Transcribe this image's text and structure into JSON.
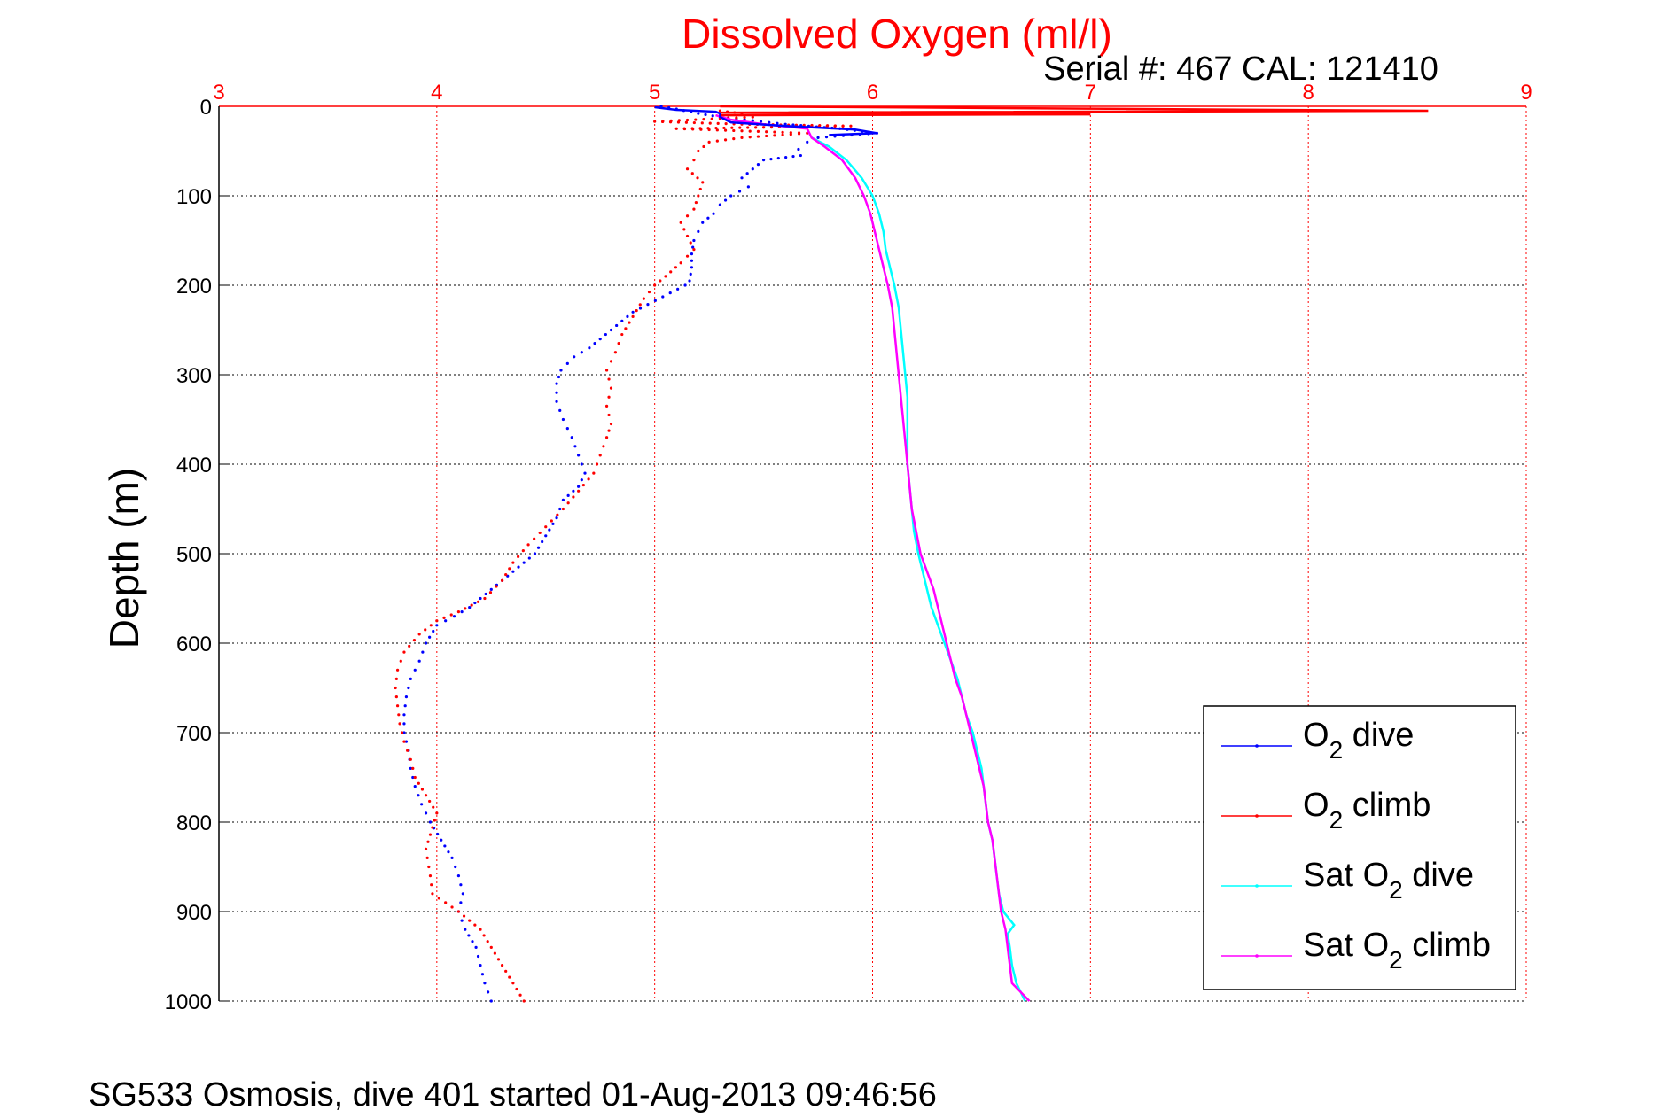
{
  "chart_data": {
    "type": "scatter",
    "title": "Dissolved Oxygen (ml/l)",
    "subtitle": "Serial #: 467  CAL: 121410",
    "footer": "SG533 Osmosis, dive 401 started 01-Aug-2013 09:46:56",
    "ylabel": "Depth (m)",
    "xlim": [
      3,
      9
    ],
    "ylim": [
      0,
      1000
    ],
    "y_reversed": true,
    "x_axis_position": "top",
    "xticks": [
      "3",
      "4",
      "5",
      "6",
      "7",
      "8",
      "9"
    ],
    "yticks": [
      "0",
      "100",
      "200",
      "300",
      "400",
      "500",
      "600",
      "700",
      "800",
      "900",
      "1000"
    ],
    "grid": true,
    "legend_placement": "bottom-right",
    "colors": {
      "title": "#ff0000",
      "x_axis": "#ff0000",
      "x_grid": "#ff0000",
      "y_grid": "#000000"
    },
    "series": [
      {
        "name": "O2 dive",
        "legend_main": "O",
        "legend_sub": "2",
        "legend_rest": " dive",
        "color": "#0000ff",
        "style": "dots",
        "points": [
          [
            5.03,
            0
          ],
          [
            5.1,
            3
          ],
          [
            5.2,
            8
          ],
          [
            5.3,
            12
          ],
          [
            5.45,
            16
          ],
          [
            5.6,
            20
          ],
          [
            5.85,
            25
          ],
          [
            6.02,
            30
          ],
          [
            5.75,
            35
          ],
          [
            5.7,
            40
          ],
          [
            5.66,
            48
          ],
          [
            5.67,
            55
          ],
          [
            5.5,
            60
          ],
          [
            5.45,
            70
          ],
          [
            5.4,
            80
          ],
          [
            5.43,
            90
          ],
          [
            5.35,
            100
          ],
          [
            5.3,
            110
          ],
          [
            5.27,
            120
          ],
          [
            5.22,
            130
          ],
          [
            5.2,
            140
          ],
          [
            5.18,
            150
          ],
          [
            5.17,
            165
          ],
          [
            5.17,
            180
          ],
          [
            5.16,
            195
          ],
          [
            5.14,
            200
          ],
          [
            4.9,
            230
          ],
          [
            4.8,
            250
          ],
          [
            4.7,
            270
          ],
          [
            4.63,
            280
          ],
          [
            4.57,
            295
          ],
          [
            4.55,
            310
          ],
          [
            4.55,
            330
          ],
          [
            4.58,
            350
          ],
          [
            4.62,
            370
          ],
          [
            4.65,
            390
          ],
          [
            4.68,
            410
          ],
          [
            4.65,
            425
          ],
          [
            4.58,
            440
          ],
          [
            4.55,
            460
          ],
          [
            4.5,
            480
          ],
          [
            4.45,
            500
          ],
          [
            4.35,
            520
          ],
          [
            4.25,
            540
          ],
          [
            4.15,
            560
          ],
          [
            4.08,
            570
          ],
          [
            4.0,
            580
          ],
          [
            3.95,
            600
          ],
          [
            3.92,
            620
          ],
          [
            3.88,
            640
          ],
          [
            3.86,
            660
          ],
          [
            3.85,
            680
          ],
          [
            3.85,
            700
          ],
          [
            3.87,
            720
          ],
          [
            3.88,
            740
          ],
          [
            3.9,
            760
          ],
          [
            3.93,
            780
          ],
          [
            3.97,
            800
          ],
          [
            4.02,
            820
          ],
          [
            4.07,
            840
          ],
          [
            4.1,
            860
          ],
          [
            4.12,
            880
          ],
          [
            4.1,
            900
          ],
          [
            4.13,
            920
          ],
          [
            4.18,
            940
          ],
          [
            4.2,
            960
          ],
          [
            4.22,
            980
          ],
          [
            4.25,
            1000
          ]
        ]
      },
      {
        "name": "O2 climb",
        "legend_main": "O",
        "legend_sub": "2",
        "legend_rest": " climb",
        "color": "#ff0000",
        "style": "dots",
        "points": [
          [
            5.3,
            5
          ],
          [
            5.4,
            8
          ],
          [
            5.45,
            12
          ],
          [
            5.0,
            17
          ],
          [
            5.4,
            20
          ],
          [
            5.9,
            22
          ],
          [
            5.1,
            25
          ],
          [
            5.7,
            30
          ],
          [
            5.4,
            35
          ],
          [
            5.25,
            40
          ],
          [
            5.2,
            50
          ],
          [
            5.18,
            60
          ],
          [
            5.15,
            70
          ],
          [
            5.22,
            85
          ],
          [
            5.2,
            100
          ],
          [
            5.18,
            115
          ],
          [
            5.12,
            130
          ],
          [
            5.15,
            145
          ],
          [
            5.18,
            160
          ],
          [
            5.12,
            175
          ],
          [
            5.05,
            190
          ],
          [
            5.0,
            200
          ],
          [
            4.95,
            215
          ],
          [
            4.9,
            235
          ],
          [
            4.85,
            255
          ],
          [
            4.82,
            275
          ],
          [
            4.78,
            295
          ],
          [
            4.8,
            315
          ],
          [
            4.78,
            335
          ],
          [
            4.8,
            355
          ],
          [
            4.78,
            370
          ],
          [
            4.75,
            390
          ],
          [
            4.72,
            410
          ],
          [
            4.65,
            430
          ],
          [
            4.58,
            450
          ],
          [
            4.5,
            470
          ],
          [
            4.42,
            490
          ],
          [
            4.35,
            510
          ],
          [
            4.3,
            530
          ],
          [
            4.22,
            550
          ],
          [
            4.1,
            565
          ],
          [
            4.0,
            575
          ],
          [
            3.92,
            590
          ],
          [
            3.85,
            610
          ],
          [
            3.82,
            630
          ],
          [
            3.81,
            650
          ],
          [
            3.82,
            670
          ],
          [
            3.83,
            690
          ],
          [
            3.85,
            710
          ],
          [
            3.88,
            730
          ],
          [
            3.9,
            750
          ],
          [
            3.95,
            770
          ],
          [
            4.0,
            790
          ],
          [
            3.95,
            830
          ],
          [
            3.97,
            860
          ],
          [
            3.98,
            880
          ],
          [
            4.1,
            900
          ],
          [
            4.2,
            920
          ],
          [
            4.25,
            940
          ],
          [
            4.3,
            960
          ],
          [
            4.35,
            980
          ],
          [
            4.4,
            1000
          ]
        ]
      },
      {
        "name": "Sat O2 dive",
        "legend_main": "Sat O",
        "legend_sub": "2",
        "legend_rest": " dive",
        "color": "#00ffff",
        "style": "line",
        "points": [
          [
            5.72,
            35
          ],
          [
            5.8,
            45
          ],
          [
            5.88,
            60
          ],
          [
            5.95,
            80
          ],
          [
            6.0,
            100
          ],
          [
            6.03,
            120
          ],
          [
            6.05,
            140
          ],
          [
            6.06,
            160
          ],
          [
            6.08,
            180
          ],
          [
            6.1,
            200
          ],
          [
            6.12,
            225
          ],
          [
            6.13,
            250
          ],
          [
            6.14,
            275
          ],
          [
            6.15,
            300
          ],
          [
            6.16,
            325
          ],
          [
            6.16,
            350
          ],
          [
            6.16,
            375
          ],
          [
            6.16,
            400
          ],
          [
            6.17,
            425
          ],
          [
            6.18,
            450
          ],
          [
            6.19,
            475
          ],
          [
            6.21,
            500
          ],
          [
            6.23,
            520
          ],
          [
            6.25,
            540
          ],
          [
            6.27,
            560
          ],
          [
            6.3,
            580
          ],
          [
            6.33,
            600
          ],
          [
            6.36,
            620
          ],
          [
            6.39,
            640
          ],
          [
            6.41,
            660
          ],
          [
            6.43,
            680
          ],
          [
            6.46,
            700
          ],
          [
            6.48,
            720
          ],
          [
            6.5,
            740
          ],
          [
            6.51,
            760
          ],
          [
            6.52,
            780
          ],
          [
            6.53,
            800
          ],
          [
            6.55,
            820
          ],
          [
            6.56,
            840
          ],
          [
            6.57,
            860
          ],
          [
            6.58,
            880
          ],
          [
            6.6,
            900
          ],
          [
            6.65,
            915
          ],
          [
            6.62,
            925
          ],
          [
            6.63,
            940
          ],
          [
            6.64,
            960
          ],
          [
            6.66,
            980
          ],
          [
            6.7,
            1000
          ]
        ]
      },
      {
        "name": "Sat O2 climb",
        "legend_main": "Sat O",
        "legend_sub": "2",
        "legend_rest": " climb",
        "color": "#ff00ff",
        "style": "line",
        "points": [
          [
            5.28,
            10
          ],
          [
            5.35,
            15
          ],
          [
            5.5,
            20
          ],
          [
            5.7,
            25
          ],
          [
            5.72,
            35
          ],
          [
            5.78,
            45
          ],
          [
            5.86,
            60
          ],
          [
            5.92,
            80
          ],
          [
            5.96,
            100
          ],
          [
            5.99,
            120
          ],
          [
            6.01,
            140
          ],
          [
            6.03,
            160
          ],
          [
            6.05,
            180
          ],
          [
            6.07,
            200
          ],
          [
            6.09,
            225
          ],
          [
            6.1,
            250
          ],
          [
            6.11,
            275
          ],
          [
            6.12,
            300
          ],
          [
            6.13,
            325
          ],
          [
            6.14,
            350
          ],
          [
            6.15,
            375
          ],
          [
            6.16,
            400
          ],
          [
            6.17,
            425
          ],
          [
            6.18,
            450
          ],
          [
            6.2,
            475
          ],
          [
            6.22,
            500
          ],
          [
            6.25,
            520
          ],
          [
            6.28,
            540
          ],
          [
            6.3,
            560
          ],
          [
            6.32,
            580
          ],
          [
            6.34,
            600
          ],
          [
            6.36,
            620
          ],
          [
            6.38,
            640
          ],
          [
            6.41,
            660
          ],
          [
            6.43,
            680
          ],
          [
            6.45,
            700
          ],
          [
            6.47,
            720
          ],
          [
            6.49,
            740
          ],
          [
            6.51,
            760
          ],
          [
            6.52,
            780
          ],
          [
            6.53,
            800
          ],
          [
            6.55,
            820
          ],
          [
            6.56,
            840
          ],
          [
            6.57,
            860
          ],
          [
            6.58,
            880
          ],
          [
            6.59,
            900
          ],
          [
            6.61,
            920
          ],
          [
            6.62,
            940
          ],
          [
            6.63,
            960
          ],
          [
            6.64,
            980
          ],
          [
            6.72,
            1000
          ]
        ]
      },
      {
        "name": "surface spikes",
        "color": "#ff0000",
        "style": "line",
        "points": [
          [
            5.3,
            0
          ],
          [
            8.55,
            5
          ],
          [
            5.3,
            7
          ],
          [
            7.0,
            9
          ],
          [
            5.3,
            10
          ]
        ]
      },
      {
        "name": "surface dive trace",
        "color": "#0000ff",
        "style": "line",
        "points": [
          [
            5.0,
            1
          ],
          [
            5.1,
            4
          ],
          [
            5.28,
            6
          ],
          [
            5.3,
            8
          ],
          [
            5.3,
            12
          ],
          [
            5.35,
            18
          ],
          [
            5.6,
            22
          ],
          [
            5.92,
            26
          ],
          [
            6.02,
            30
          ],
          [
            5.8,
            32
          ]
        ]
      }
    ]
  }
}
